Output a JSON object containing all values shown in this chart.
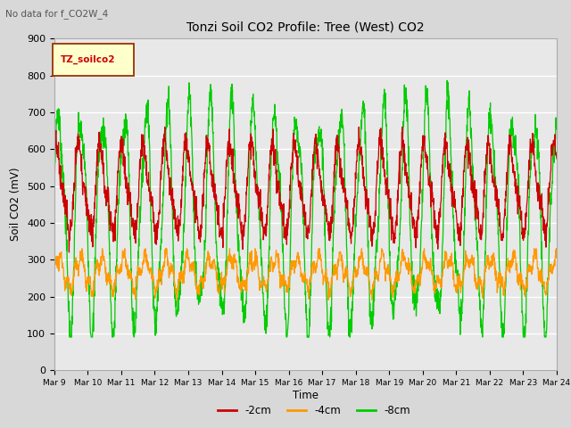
{
  "title": "Tonzi Soil CO2 Profile: Tree (West) CO2",
  "subtitle": "No data for f_CO2W_4",
  "ylabel": "Soil CO2 (mV)",
  "xlabel": "Time",
  "legend_label": "TZ_soilco2",
  "series_labels": [
    "-2cm",
    "-4cm",
    "-8cm"
  ],
  "series_colors": [
    "#cc0000",
    "#ff9900",
    "#00cc00"
  ],
  "ylim": [
    0,
    900
  ],
  "background_color": "#d8d8d8",
  "plot_bg_color": "#e8e8e8",
  "xtick_labels": [
    "Mar 9",
    "Mar 10",
    "Mar 11",
    "Mar 12",
    "Mar 13",
    "Mar 14",
    "Mar 15",
    "Mar 16",
    "Mar 17",
    "Mar 18",
    "Mar 19",
    "Mar 20",
    "Mar 21",
    "Mar 22",
    "Mar 23",
    "Mar 24"
  ],
  "num_points": 2000
}
